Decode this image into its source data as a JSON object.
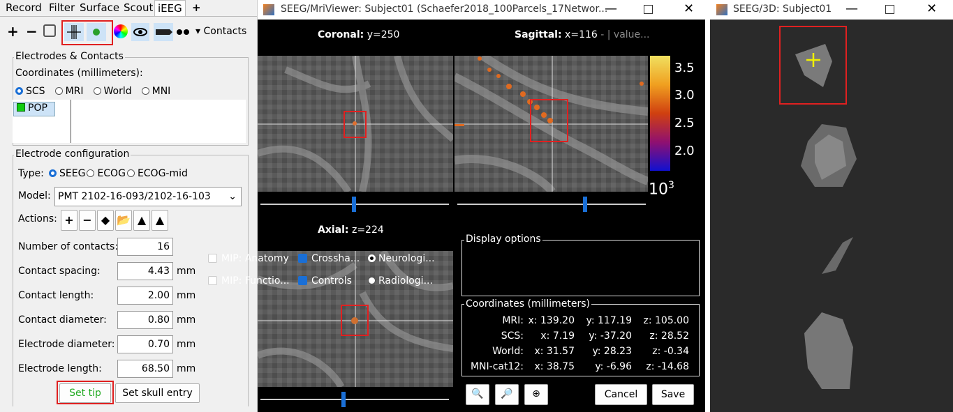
{
  "left_panel": {
    "tabs": [
      "Record",
      "Filter",
      "Surface",
      "Scout",
      "iEEG",
      "+"
    ],
    "toolbar_dropdown": "Contacts",
    "electrodes_section": {
      "title": "Electrodes & Contacts",
      "coords_label": "Coordinates (millimeters):",
      "coord_options": [
        "SCS",
        "MRI",
        "World",
        "MNI"
      ],
      "electrodes": [
        "POP"
      ]
    },
    "config_section": {
      "title": "Electrode configuration",
      "type_label": "Type:",
      "type_options": [
        "SEEG",
        "ECOG",
        "ECOG-mid"
      ],
      "model_label": "Model:",
      "model_value": "PMT 2102-16-093/2102-16-103",
      "actions_label": "Actions:",
      "fields": [
        {
          "label": "Number of contacts:",
          "value": "16"
        },
        {
          "label": "Contact spacing:",
          "value": "4.43",
          "unit": "mm"
        },
        {
          "label": "Contact length:",
          "value": "2.00",
          "unit": "mm"
        },
        {
          "label": "Contact diameter:",
          "value": "0.80",
          "unit": "mm"
        },
        {
          "label": "Electrode diameter:",
          "value": "0.70",
          "unit": "mm"
        },
        {
          "label": "Electrode length:",
          "value": "68.50",
          "unit": "mm"
        }
      ]
    },
    "buttons": [
      "Set tip",
      "Set skull entry"
    ]
  },
  "mri_viewer": {
    "title": "SEEG/MriViewer: Subject01 (Schaefer2018_100Parcels_17Networ...",
    "coronal": {
      "label": "Coronal:",
      "value": "y=250"
    },
    "sagittal": {
      "label": "Sagittal:",
      "value": "x=116",
      "extra": "- | value..."
    },
    "axial": {
      "label": "Axial:",
      "value": "z=224"
    },
    "colorbar": {
      "ticks": [
        "3.5",
        "3.0",
        "2.5",
        "2.0"
      ],
      "exponent_base": "10",
      "exponent": "3"
    },
    "display_options": {
      "title": "Display options",
      "options": [
        "MIP: Anatomy",
        "Crossha...",
        "Neurologi...",
        "MIP: Functio...",
        "Controls",
        "Radiologi..."
      ]
    },
    "coordinates": {
      "title": "Coordinates (millimeters)",
      "rows": [
        {
          "label": "MRI:",
          "x": "x: 139.20",
          "y": "y: 117.19",
          "z": "z: 105.00"
        },
        {
          "label": "SCS:",
          "x": "x: 7.19",
          "y": "y: -37.20",
          "z": "z: 28.52"
        },
        {
          "label": "World:",
          "x": "x: 31.57",
          "y": "y: 28.23",
          "z": "z: -0.34"
        },
        {
          "label": "MNI-cat12:",
          "x": "x: 38.75",
          "y": "y: -6.96",
          "z": "z: -14.68"
        }
      ]
    },
    "buttons": [
      "Cancel",
      "Save"
    ]
  },
  "view_3d": {
    "title": "SEEG/3D: Subject01"
  }
}
